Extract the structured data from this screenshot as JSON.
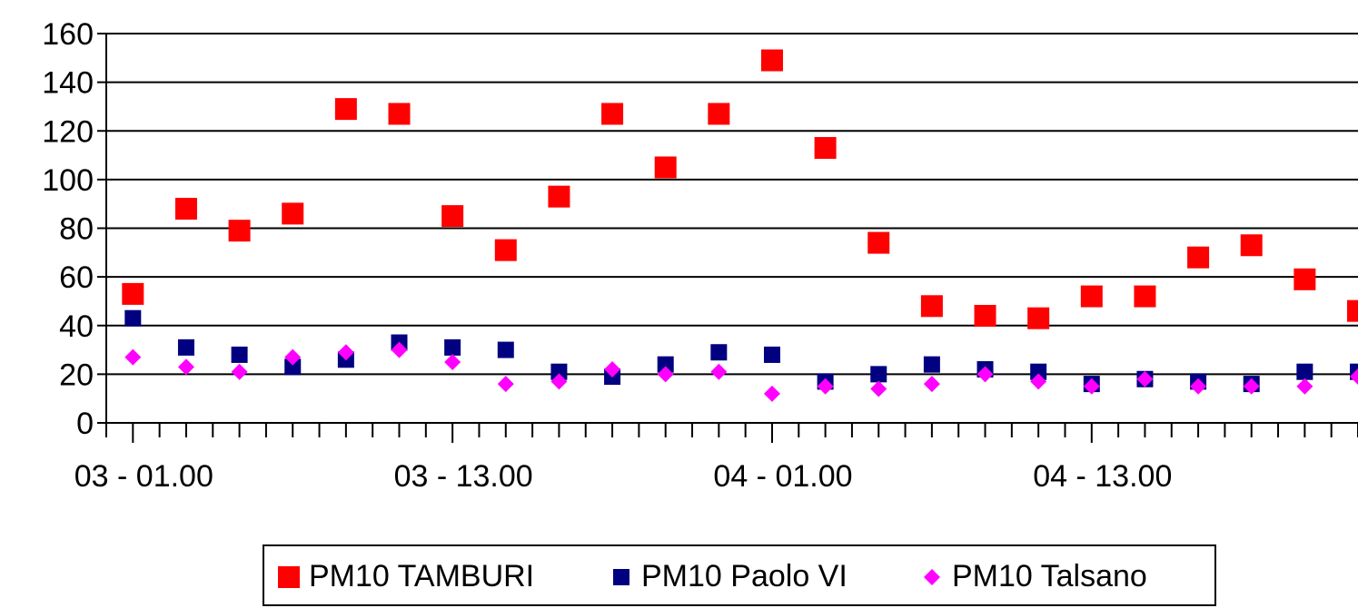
{
  "chart_data": {
    "type": "scatter",
    "title": "",
    "xlabel": "",
    "ylabel": "",
    "ylim": [
      0,
      160
    ],
    "yticks": [
      0,
      20,
      40,
      60,
      80,
      100,
      120,
      140,
      160
    ],
    "xtick_labels": [
      "03 - 01.00",
      "03 - 13.00",
      "04 - 01.00",
      "04 - 13.00"
    ],
    "grid": "horizontal",
    "legend_position": "bottom",
    "x": [
      1,
      3,
      5,
      7,
      9,
      11,
      13,
      15,
      17,
      19,
      21,
      23,
      25,
      27,
      29,
      31,
      33,
      35,
      37,
      39,
      41,
      43,
      45,
      47
    ],
    "series": [
      {
        "name": "PM10 TAMBURI",
        "color": "#ff0000",
        "marker": "square",
        "values": [
          53,
          88,
          79,
          86,
          129,
          127,
          85,
          71,
          93,
          127,
          105,
          127,
          149,
          113,
          74,
          48,
          44,
          43,
          52,
          52,
          68,
          73,
          59,
          46
        ]
      },
      {
        "name": "PM10 Paolo VI",
        "color": "#000080",
        "marker": "square",
        "values": [
          43,
          31,
          28,
          23,
          26,
          33,
          31,
          30,
          21,
          19,
          24,
          29,
          28,
          17,
          20,
          24,
          22,
          21,
          16,
          18,
          17,
          16,
          21,
          21
        ]
      },
      {
        "name": "PM10 Talsano",
        "color": "#ff00ff",
        "marker": "diamond",
        "values": [
          27,
          23,
          21,
          27,
          29,
          30,
          25,
          16,
          17,
          22,
          20,
          21,
          12,
          15,
          14,
          16,
          20,
          17,
          15,
          18,
          15,
          15,
          15,
          19
        ]
      }
    ]
  }
}
